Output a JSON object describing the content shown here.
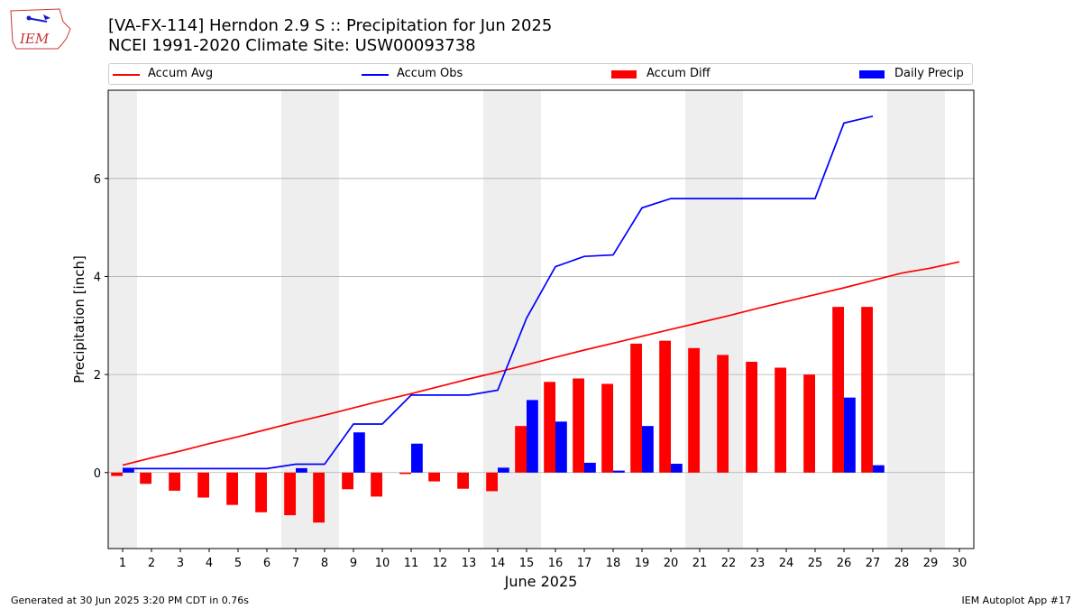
{
  "header": {
    "title_line1": "[VA-FX-114] Herndon 2.9 S :: Precipitation for Jun 2025",
    "title_line2": "NCEI 1991-2020 Climate Site: USW00093738",
    "logo_text": "IEM"
  },
  "legend": {
    "placement": "top",
    "items": [
      {
        "label": "Accum Avg",
        "kind": "line",
        "color": "#ff0000"
      },
      {
        "label": "Accum Obs",
        "kind": "line",
        "color": "#0000ff"
      },
      {
        "label": "Accum Diff",
        "kind": "bar",
        "color": "#ff0000"
      },
      {
        "label": "Daily Precip",
        "kind": "bar",
        "color": "#0000ff"
      }
    ]
  },
  "footer": {
    "left": "Generated at 30 Jun 2025 3:20 PM CDT in 0.76s",
    "right": "IEM Autoplot App #17"
  },
  "chart_data": {
    "type": "bar",
    "xlabel": "June 2025",
    "ylabel": "Precipitation [inch]",
    "xlim": [
      0.5,
      30.5
    ],
    "ylim": [
      -1.55,
      7.8
    ],
    "yticks": [
      0,
      2,
      4,
      6
    ],
    "grid": "horizontal",
    "days": [
      1,
      2,
      3,
      4,
      5,
      6,
      7,
      8,
      9,
      10,
      11,
      12,
      13,
      14,
      15,
      16,
      17,
      18,
      19,
      20,
      21,
      22,
      23,
      24,
      25,
      26,
      27,
      28,
      29,
      30
    ],
    "weekend_shading": [
      [
        0.5,
        1.5
      ],
      [
        6.5,
        8.5
      ],
      [
        13.5,
        15.5
      ],
      [
        20.5,
        22.5
      ],
      [
        27.5,
        29.5
      ]
    ],
    "colors": {
      "avg": "#ff0000",
      "obs": "#0000ff",
      "diff": "#ff0000",
      "daily": "#0000ff",
      "shade": "#eeeeee",
      "grid": "#b0b0b0"
    },
    "series": [
      {
        "name": "Accum Avg",
        "values": [
          0.15,
          0.3,
          0.44,
          0.59,
          0.73,
          0.88,
          1.03,
          1.17,
          1.32,
          1.47,
          1.61,
          1.76,
          1.91,
          2.05,
          2.2,
          2.35,
          2.5,
          2.64,
          2.78,
          2.92,
          3.06,
          3.2,
          3.35,
          3.49,
          3.63,
          3.77,
          3.92,
          4.07,
          4.17,
          4.3
        ]
      },
      {
        "name": "Accum Obs",
        "values": [
          0.08,
          0.08,
          0.08,
          0.08,
          0.08,
          0.08,
          0.17,
          0.17,
          0.99,
          0.99,
          1.58,
          1.58,
          1.58,
          1.68,
          3.15,
          4.2,
          4.41,
          4.44,
          5.4,
          5.59,
          5.59,
          5.59,
          5.59,
          5.59,
          5.59,
          7.13,
          7.27,
          null,
          null,
          null
        ]
      },
      {
        "name": "Accum Diff",
        "values": [
          -0.07,
          -0.23,
          -0.37,
          -0.51,
          -0.66,
          -0.81,
          -0.87,
          -1.02,
          -0.34,
          -0.49,
          -0.03,
          -0.18,
          -0.33,
          -0.38,
          0.95,
          1.85,
          1.92,
          1.81,
          2.63,
          2.69,
          2.54,
          2.4,
          2.26,
          2.14,
          2.0,
          3.38,
          3.38,
          null,
          null,
          null
        ]
      },
      {
        "name": "Daily Precip",
        "values": [
          0.08,
          0.0,
          0.0,
          0.0,
          0.0,
          0.0,
          0.09,
          0.0,
          0.82,
          0.0,
          0.59,
          0.0,
          0.0,
          0.1,
          1.48,
          1.04,
          0.2,
          0.04,
          0.95,
          0.18,
          0.0,
          0.0,
          0.0,
          0.0,
          0.0,
          1.53,
          0.15,
          null,
          null,
          null
        ]
      }
    ]
  }
}
